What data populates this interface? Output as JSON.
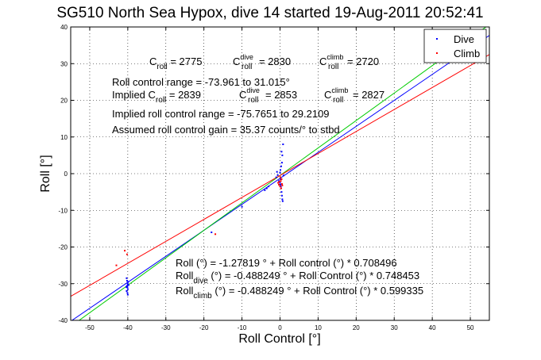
{
  "chart_data": {
    "type": "scatter",
    "title": "SG510 North Sea Hypox, dive 14 started 19-Aug-2011 20:52:41",
    "xlabel": "Roll Control [°]",
    "ylabel": "Roll [°]",
    "xlim": [
      -55,
      55
    ],
    "ylim": [
      -40,
      40
    ],
    "xticks": [
      -50,
      -40,
      -30,
      -20,
      -10,
      0,
      10,
      20,
      30,
      40,
      50
    ],
    "yticks": [
      -40,
      -30,
      -20,
      -10,
      0,
      10,
      20,
      30,
      40
    ],
    "grid": true,
    "legend": {
      "position": "top-right",
      "entries": [
        {
          "label": "Dive",
          "color": "#0000ff"
        },
        {
          "label": "Climb",
          "color": "#ff0000"
        }
      ]
    },
    "series": [
      {
        "name": "Dive",
        "color": "#0000ff",
        "points": [
          [
            -40.3,
            -28.5
          ],
          [
            -40.2,
            -29.2
          ],
          [
            -40.1,
            -29.8
          ],
          [
            -40.0,
            -30.2
          ],
          [
            -40.2,
            -30.6
          ],
          [
            -40.1,
            -31.0
          ],
          [
            -40.0,
            -31.5
          ],
          [
            -40.3,
            -32.0
          ],
          [
            -40.1,
            -32.5
          ],
          [
            -40.0,
            -33.0
          ],
          [
            -39.9,
            -29.5
          ],
          [
            -40.4,
            -30.9
          ],
          [
            -39.8,
            -30.4
          ],
          [
            -4.0,
            -4.5
          ],
          [
            -3.5,
            -4.0
          ],
          [
            -3.0,
            -3.5
          ],
          [
            -1.0,
            -1.0
          ],
          [
            -0.8,
            0.5
          ],
          [
            -0.6,
            -0.4
          ],
          [
            -0.3,
            -2.0
          ],
          [
            0.0,
            -2.5
          ],
          [
            0.1,
            -3.0
          ],
          [
            0.2,
            -3.5
          ],
          [
            0.3,
            -4.0
          ],
          [
            0.4,
            -5.0
          ],
          [
            0.5,
            -6.0
          ],
          [
            0.6,
            -7.0
          ],
          [
            0.7,
            -7.5
          ],
          [
            0.1,
            1.0
          ],
          [
            0.3,
            2.0
          ],
          [
            0.5,
            3.0
          ],
          [
            0.6,
            5.0
          ],
          [
            0.4,
            6.0
          ],
          [
            0.8,
            8.0
          ],
          [
            0.2,
            -1.5
          ],
          [
            0.9,
            -0.5
          ],
          [
            0.0,
            0.3
          ],
          [
            -18.0,
            -16.0
          ],
          [
            -10.0,
            -9.0
          ]
        ]
      },
      {
        "name": "Climb",
        "color": "#ff0000",
        "points": [
          [
            -43.0,
            -25.0
          ],
          [
            -40.8,
            -21.0
          ],
          [
            -40.2,
            -22.0
          ],
          [
            -17.0,
            -16.5
          ],
          [
            -0.5,
            -2.5
          ],
          [
            -0.3,
            -3.0
          ],
          [
            0.0,
            -3.5
          ],
          [
            0.2,
            -2.0
          ],
          [
            0.4,
            -1.5
          ],
          [
            0.5,
            -2.8
          ],
          [
            0.6,
            -3.2
          ],
          [
            0.1,
            -1.0
          ],
          [
            0.3,
            -4.0
          ],
          [
            -0.2,
            -2.2
          ]
        ]
      }
    ],
    "fit_lines": [
      {
        "name": "roll",
        "color": "#0000ff",
        "intercept": -1.27819,
        "slope": 0.708496
      },
      {
        "name": "dive",
        "color": "#00cc00",
        "intercept": -0.488249,
        "slope": 0.748453
      },
      {
        "name": "climb",
        "color": "#ff0000",
        "intercept": -0.488249,
        "slope": 0.599335
      }
    ],
    "annotations": {
      "c_roll_label": "C",
      "c_roll_sub": "roll",
      "c_roll_value": " = 2775",
      "c_dive_label": "C",
      "c_dive_sup": "dive",
      "c_dive_sub": "roll",
      "c_dive_value": " = 2830",
      "c_climb_label": "C",
      "c_climb_sup": "climb",
      "c_climb_sub": "roll",
      "c_climb_value": " = 2720",
      "roll_control_range": "Roll control range = -73.961 to 31.015°",
      "implied_label": "Implied C",
      "implied_sub": "roll",
      "implied_value": " = 2839",
      "implied_dive_label": "C",
      "implied_dive_sup": "dive",
      "implied_dive_sub": "roll",
      "implied_dive_value": " = 2853",
      "implied_climb_label": "C",
      "implied_climb_sup": "climb",
      "implied_climb_sub": "roll",
      "implied_climb_value": " = 2827",
      "implied_range": "Implied roll control range = -75.7651 to 29.2109",
      "assumed_gain": "Assumed roll control gain = 35.37 counts/° to stbd",
      "eq_roll": "Roll (°) = -1.27819 ° + Roll control (°) * 0.708496",
      "eq_dive_main": "Roll",
      "eq_dive_sub": "dive",
      "eq_dive_rest": " (°) = -0.488249 ° + Roll Control (°) * 0.748453",
      "eq_climb_main": "Roll",
      "eq_climb_sub": "climb",
      "eq_climb_rest": " (°) = -0.488249 ° + Roll Control (°) * 0.599335"
    }
  }
}
